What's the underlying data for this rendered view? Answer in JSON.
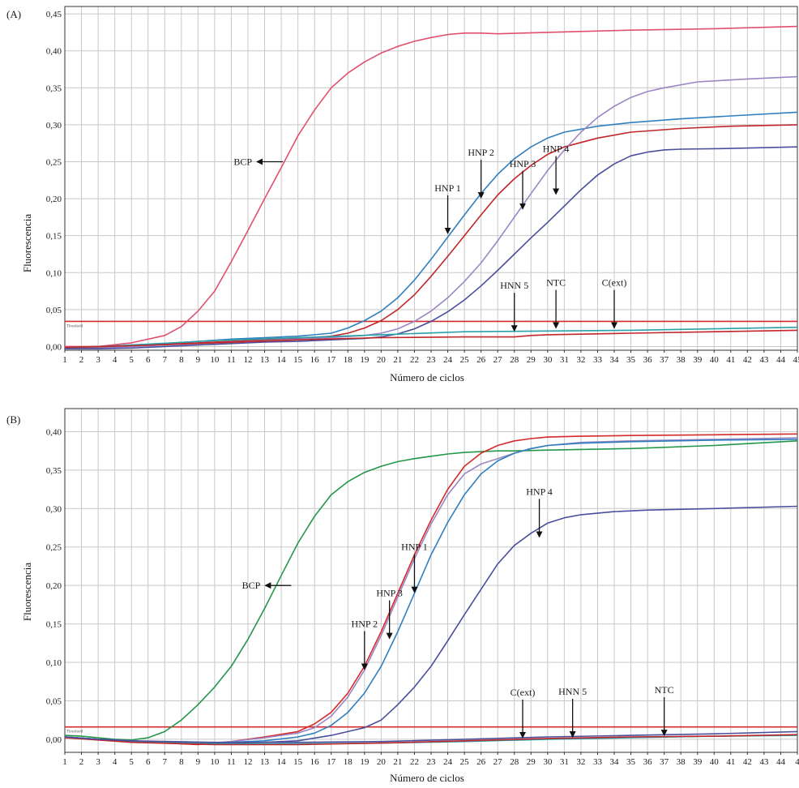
{
  "chart_data": [
    {
      "type": "line",
      "panel_label": "(A)",
      "xlabel": "Número de ciclos",
      "ylabel": "Fluorescencia",
      "xlim": [
        1,
        45
      ],
      "ylim": [
        -0.005,
        0.46
      ],
      "x_ticks": [
        "1",
        "2",
        "3",
        "4",
        "5",
        "6",
        "7",
        "8",
        "9",
        "10",
        "11",
        "12",
        "13",
        "14",
        "15",
        "16",
        "17",
        "18",
        "19",
        "20",
        "21",
        "22",
        "23",
        "24",
        "25",
        "26",
        "27",
        "28",
        "29",
        "30",
        "31",
        "32",
        "33",
        "34",
        "35",
        "36",
        "37",
        "38",
        "39",
        "40",
        "41",
        "42",
        "43",
        "44",
        "45"
      ],
      "y_ticks": [
        {
          "v": 0.0,
          "label": "0,00"
        },
        {
          "v": 0.05,
          "label": "0,05"
        },
        {
          "v": 0.1,
          "label": "0,10"
        },
        {
          "v": 0.15,
          "label": "0,15"
        },
        {
          "v": 0.2,
          "label": "0,20"
        },
        {
          "v": 0.25,
          "label": "0,25"
        },
        {
          "v": 0.3,
          "label": "0,30"
        },
        {
          "v": 0.35,
          "label": "0,35"
        },
        {
          "v": 0.4,
          "label": "0,40"
        },
        {
          "v": 0.45,
          "label": "0,45"
        }
      ],
      "grid": true,
      "threshold": {
        "value": 0.034,
        "label": "Threshold",
        "color": "#d42a2a"
      },
      "series": [
        {
          "color": "#e0506e",
          "x": [
            1,
            3,
            5,
            7,
            8,
            9,
            10,
            11,
            12,
            13,
            14,
            15,
            16,
            17,
            18,
            19,
            20,
            21,
            22,
            23,
            24,
            25,
            26,
            27,
            30,
            35,
            40,
            45
          ],
          "y": [
            0.0,
            0.0,
            0.005,
            0.015,
            0.027,
            0.048,
            0.075,
            0.115,
            0.157,
            0.2,
            0.242,
            0.285,
            0.32,
            0.35,
            0.37,
            0.385,
            0.397,
            0.406,
            0.413,
            0.418,
            0.422,
            0.424,
            0.424,
            0.423,
            0.425,
            0.428,
            0.43,
            0.433
          ]
        },
        {
          "color": "#2f7fc0",
          "x": [
            1,
            3,
            5,
            7,
            9,
            11,
            13,
            15,
            17,
            18,
            19,
            20,
            21,
            22,
            23,
            24,
            25,
            26,
            27,
            28,
            29,
            30,
            31,
            33,
            35,
            38,
            41,
            45
          ],
          "y": [
            -0.002,
            -0.001,
            0.002,
            0.004,
            0.007,
            0.01,
            0.012,
            0.014,
            0.018,
            0.025,
            0.035,
            0.048,
            0.066,
            0.09,
            0.118,
            0.148,
            0.178,
            0.207,
            0.233,
            0.254,
            0.27,
            0.282,
            0.29,
            0.298,
            0.303,
            0.308,
            0.312,
            0.317
          ]
        },
        {
          "color": "#c0262a",
          "x": [
            1,
            3,
            5,
            7,
            9,
            11,
            13,
            15,
            17,
            18,
            19,
            20,
            21,
            22,
            23,
            24,
            25,
            26,
            27,
            28,
            29,
            30,
            31,
            33,
            35,
            38,
            41,
            45
          ],
          "y": [
            -0.002,
            -0.001,
            0.001,
            0.003,
            0.005,
            0.007,
            0.009,
            0.011,
            0.014,
            0.018,
            0.025,
            0.035,
            0.05,
            0.07,
            0.095,
            0.122,
            0.15,
            0.178,
            0.205,
            0.227,
            0.245,
            0.26,
            0.27,
            0.282,
            0.29,
            0.295,
            0.298,
            0.3
          ]
        },
        {
          "color": "#9b86c4",
          "x": [
            1,
            3,
            5,
            7,
            9,
            11,
            13,
            15,
            17,
            19,
            20,
            21,
            22,
            23,
            24,
            25,
            26,
            27,
            28,
            29,
            30,
            31,
            32,
            33,
            34,
            35,
            36,
            37,
            39,
            42,
            45
          ],
          "y": [
            -0.003,
            -0.002,
            0.0,
            0.002,
            0.004,
            0.006,
            0.008,
            0.01,
            0.012,
            0.015,
            0.018,
            0.024,
            0.034,
            0.048,
            0.066,
            0.088,
            0.113,
            0.143,
            0.175,
            0.207,
            0.238,
            0.266,
            0.29,
            0.31,
            0.325,
            0.337,
            0.345,
            0.35,
            0.358,
            0.362,
            0.365
          ]
        },
        {
          "color": "#4a4f9c",
          "x": [
            1,
            3,
            5,
            7,
            9,
            11,
            13,
            15,
            17,
            19,
            20,
            21,
            22,
            23,
            24,
            25,
            26,
            27,
            28,
            29,
            30,
            31,
            32,
            33,
            34,
            35,
            36,
            37,
            38,
            41,
            45
          ],
          "y": [
            -0.003,
            -0.003,
            -0.002,
            0.0,
            0.002,
            0.004,
            0.006,
            0.007,
            0.009,
            0.011,
            0.013,
            0.017,
            0.024,
            0.034,
            0.047,
            0.063,
            0.082,
            0.103,
            0.125,
            0.147,
            0.168,
            0.19,
            0.212,
            0.232,
            0.247,
            0.258,
            0.263,
            0.266,
            0.267,
            0.268,
            0.27
          ]
        },
        {
          "color": "#2aa0a8",
          "x": [
            1,
            3,
            5,
            10,
            15,
            20,
            25,
            30,
            35,
            40,
            45
          ],
          "y": [
            -0.001,
            0.0,
            0.002,
            0.008,
            0.012,
            0.016,
            0.02,
            0.021,
            0.022,
            0.024,
            0.026
          ]
        },
        {
          "color": "#c0262a",
          "x": [
            1,
            3,
            5,
            10,
            15,
            20,
            25,
            28,
            29,
            30,
            35,
            40,
            45
          ],
          "y": [
            -0.001,
            0.0,
            0.001,
            0.005,
            0.009,
            0.012,
            0.013,
            0.013,
            0.015,
            0.016,
            0.018,
            0.02,
            0.022
          ]
        }
      ],
      "annotations": [
        {
          "label": "BCP",
          "dir": "left",
          "x": 14.0,
          "y": 0.25
        },
        {
          "label": "HNP 1",
          "dir": "down",
          "x": 24.0,
          "y": 0.152
        },
        {
          "label": "HNP 2",
          "dir": "down",
          "x": 26.0,
          "y": 0.2
        },
        {
          "label": "HNP 3",
          "dir": "down",
          "x": 28.5,
          "y": 0.185
        },
        {
          "label": "HNP 4",
          "dir": "down",
          "x": 30.5,
          "y": 0.205
        },
        {
          "label": "HNN 5",
          "dir": "down",
          "x": 28.0,
          "y": 0.02
        },
        {
          "label": "NTC",
          "dir": "down",
          "x": 30.5,
          "y": 0.024
        },
        {
          "label": "C(ext)",
          "dir": "down",
          "x": 34.0,
          "y": 0.024
        }
      ]
    },
    {
      "type": "line",
      "panel_label": "(B)",
      "xlabel": "Número de ciclos",
      "ylabel": "Fluorescencia",
      "xlim": [
        1,
        45
      ],
      "ylim": [
        -0.017,
        0.43
      ],
      "x_ticks": [
        "1",
        "2",
        "3",
        "4",
        "5",
        "6",
        "7",
        "8",
        "9",
        "10",
        "11",
        "12",
        "13",
        "14",
        "15",
        "16",
        "17",
        "18",
        "19",
        "20",
        "21",
        "22",
        "23",
        "24",
        "25",
        "26",
        "27",
        "28",
        "29",
        "30",
        "31",
        "32",
        "33",
        "34",
        "35",
        "36",
        "37",
        "38",
        "39",
        "40",
        "41",
        "42",
        "43",
        "44",
        "4"
      ],
      "y_ticks": [
        {
          "v": 0.0,
          "label": "0,00"
        },
        {
          "v": 0.05,
          "label": "0,05"
        },
        {
          "v": 0.1,
          "label": "0,10"
        },
        {
          "v": 0.15,
          "label": "0,15"
        },
        {
          "v": 0.2,
          "label": "0,20"
        },
        {
          "v": 0.25,
          "label": "0,25"
        },
        {
          "v": 0.3,
          "label": "0,30"
        },
        {
          "v": 0.35,
          "label": "0,35"
        },
        {
          "v": 0.4,
          "label": "0,40"
        }
      ],
      "grid": true,
      "threshold": {
        "value": 0.016,
        "label": "Threshold",
        "color": "#d42a2a"
      },
      "series": [
        {
          "color": "#24964a",
          "x": [
            1,
            2,
            3,
            4,
            5,
            6,
            7,
            8,
            9,
            10,
            11,
            12,
            13,
            14,
            15,
            16,
            17,
            18,
            19,
            20,
            21,
            22,
            23,
            24,
            25,
            26,
            27,
            28,
            30,
            35,
            40,
            45
          ],
          "y": [
            0.005,
            0.004,
            0.002,
            0.0,
            -0.001,
            0.002,
            0.01,
            0.025,
            0.045,
            0.068,
            0.095,
            0.13,
            0.17,
            0.213,
            0.255,
            0.29,
            0.318,
            0.335,
            0.347,
            0.355,
            0.361,
            0.365,
            0.368,
            0.371,
            0.373,
            0.374,
            0.375,
            0.375,
            0.376,
            0.378,
            0.382,
            0.388
          ]
        },
        {
          "color": "#d42a2a",
          "x": [
            1,
            3,
            5,
            7,
            9,
            11,
            13,
            15,
            16,
            17,
            18,
            19,
            20,
            21,
            22,
            23,
            24,
            25,
            26,
            27,
            28,
            29,
            30,
            32,
            35,
            40,
            45
          ],
          "y": [
            0.003,
            0.0,
            -0.003,
            -0.005,
            -0.007,
            -0.003,
            0.003,
            0.01,
            0.02,
            0.035,
            0.06,
            0.095,
            0.14,
            0.19,
            0.24,
            0.285,
            0.325,
            0.355,
            0.372,
            0.382,
            0.388,
            0.391,
            0.393,
            0.394,
            0.395,
            0.396,
            0.397
          ]
        },
        {
          "color": "#9b86c4",
          "x": [
            1,
            3,
            5,
            7,
            9,
            11,
            13,
            15,
            16,
            17,
            18,
            19,
            20,
            21,
            22,
            23,
            24,
            25,
            26,
            27,
            28,
            29,
            30,
            32,
            35,
            40,
            45
          ],
          "y": [
            0.003,
            0.0,
            -0.002,
            -0.004,
            -0.006,
            -0.003,
            0.002,
            0.008,
            0.015,
            0.03,
            0.055,
            0.09,
            0.135,
            0.185,
            0.235,
            0.28,
            0.318,
            0.345,
            0.358,
            0.365,
            0.372,
            0.378,
            0.382,
            0.386,
            0.388,
            0.39,
            0.392
          ]
        },
        {
          "color": "#2f7fc0",
          "x": [
            1,
            3,
            5,
            7,
            9,
            11,
            13,
            15,
            16,
            17,
            18,
            19,
            20,
            21,
            22,
            23,
            24,
            25,
            26,
            27,
            28,
            29,
            30,
            32,
            35,
            40,
            45
          ],
          "y": [
            0.003,
            0.0,
            -0.002,
            -0.004,
            -0.005,
            -0.004,
            -0.002,
            0.003,
            0.008,
            0.018,
            0.035,
            0.06,
            0.095,
            0.14,
            0.19,
            0.24,
            0.282,
            0.318,
            0.345,
            0.362,
            0.372,
            0.378,
            0.382,
            0.385,
            0.387,
            0.389,
            0.39
          ]
        },
        {
          "color": "#4a4f9c",
          "x": [
            1,
            3,
            5,
            7,
            9,
            11,
            13,
            15,
            17,
            19,
            20,
            21,
            22,
            23,
            24,
            25,
            26,
            27,
            28,
            29,
            30,
            31,
            32,
            34,
            36,
            40,
            45
          ],
          "y": [
            0.003,
            0.0,
            -0.002,
            -0.004,
            -0.005,
            -0.005,
            -0.004,
            -0.002,
            0.005,
            0.015,
            0.025,
            0.045,
            0.068,
            0.095,
            0.128,
            0.162,
            0.195,
            0.228,
            0.252,
            0.268,
            0.281,
            0.288,
            0.292,
            0.296,
            0.298,
            0.3,
            0.303
          ]
        },
        {
          "color": "#2aa0a8",
          "x": [
            1,
            3,
            5,
            10,
            15,
            20,
            25,
            30,
            35,
            40,
            45
          ],
          "y": [
            0.003,
            0.0,
            -0.003,
            -0.006,
            -0.006,
            -0.005,
            -0.003,
            0.0,
            0.002,
            0.004,
            0.005
          ]
        },
        {
          "color": "#c0262a",
          "x": [
            1,
            3,
            5,
            10,
            15,
            20,
            25,
            30,
            35,
            40,
            45
          ],
          "y": [
            0.002,
            -0.001,
            -0.004,
            -0.007,
            -0.007,
            -0.005,
            -0.002,
            0.001,
            0.003,
            0.004,
            0.006
          ]
        },
        {
          "color": "#4a4f9c",
          "x": [
            1,
            3,
            5,
            10,
            15,
            20,
            25,
            30,
            35,
            40,
            45
          ],
          "y": [
            0.003,
            0.0,
            -0.002,
            -0.004,
            -0.004,
            -0.003,
            0.0,
            0.003,
            0.005,
            0.007,
            0.01
          ]
        }
      ],
      "annotations": [
        {
          "label": "BCP",
          "dir": "left",
          "x": 14.5,
          "y": 0.2
        },
        {
          "label": "HNP 1",
          "dir": "down",
          "x": 22.0,
          "y": 0.19
        },
        {
          "label": "HNP 2",
          "dir": "down",
          "x": 19.0,
          "y": 0.09
        },
        {
          "label": "HNP 3",
          "dir": "down",
          "x": 20.5,
          "y": 0.13
        },
        {
          "label": "HNP 4",
          "dir": "down",
          "x": 29.5,
          "y": 0.262
        },
        {
          "label": "C(ext)",
          "dir": "down",
          "x": 28.5,
          "y": 0.001
        },
        {
          "label": "HNN 5",
          "dir": "down",
          "x": 31.5,
          "y": 0.002
        },
        {
          "label": "NTC",
          "dir": "down",
          "x": 37.0,
          "y": 0.004
        }
      ]
    }
  ]
}
